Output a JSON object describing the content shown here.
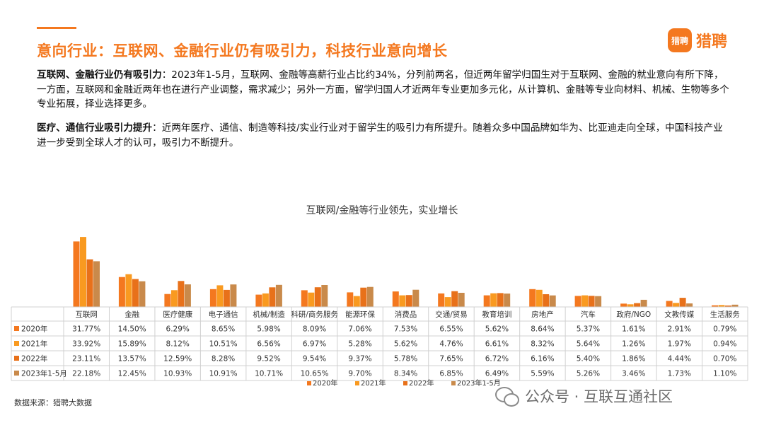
{
  "header": {
    "title": "意向行业：互联网、金融行业仍有吸引力，科技行业意向增长",
    "logo_badge": "猎聘",
    "logo_text": "猎聘"
  },
  "paragraphs": [
    {
      "lead": "互联网、金融行业仍有吸引力",
      "body": "：2023年1-5月，互联网、金融等高薪行业占比约34%，分列前两名，但近两年留学归国生对于互联网、金融的就业意向有所下降，一方面，互联网和金融近两年也在进行产业调整，需求减少；另外一方面，留学归国人才近两年专业更加多元化，从计算机、金融等专业向材料、机械、生物等多个专业拓展，择业选择更多。"
    },
    {
      "lead": "医疗、通信行业吸引力提升",
      "body": "：近两年医疗、通信、制造等科技/实业行业对于留学生的吸引力有所提升。随着众多中国品牌如华为、比亚迪走向全球，中国科技产业进一步受到全球人才的认可，吸引力不断提升。"
    }
  ],
  "chart_data": {
    "type": "bar",
    "title": "互联网/金融等行业领先，实业增长",
    "categories": [
      "互联网",
      "金融",
      "医疗健康",
      "电子通信",
      "机械/制造",
      "科研/商务服务",
      "能源环保",
      "消费品",
      "交通/贸易",
      "教育培训",
      "房地产",
      "汽车",
      "政府/NGO",
      "文教传媒",
      "生活服务"
    ],
    "series": [
      {
        "name": "2020年",
        "color": "#f4781f",
        "labels": [
          "31.77%",
          "14.50%",
          "6.29%",
          "8.65%",
          "5.98%",
          "8.09%",
          "7.06%",
          "7.53%",
          "6.55%",
          "5.62%",
          "8.64%",
          "5.37%",
          "1.61%",
          "2.91%",
          "0.79%"
        ],
        "values": [
          31.77,
          14.5,
          6.29,
          8.65,
          5.98,
          8.09,
          7.06,
          7.53,
          6.55,
          5.62,
          8.64,
          5.37,
          1.61,
          2.91,
          0.79
        ]
      },
      {
        "name": "2021年",
        "color": "#f99a20",
        "labels": [
          "33.92%",
          "15.89%",
          "8.12%",
          "10.51%",
          "6.56%",
          "6.97%",
          "5.28%",
          "5.62%",
          "4.76%",
          "6.61%",
          "8.32%",
          "5.64%",
          "1.26%",
          "1.97%",
          "0.94%"
        ],
        "values": [
          33.92,
          15.89,
          8.12,
          10.51,
          6.56,
          6.97,
          5.28,
          5.62,
          4.76,
          6.61,
          8.32,
          5.64,
          1.26,
          1.97,
          0.94
        ]
      },
      {
        "name": "2022年",
        "color": "#e8711a",
        "labels": [
          "23.11%",
          "13.57%",
          "12.59%",
          "8.28%",
          "9.52%",
          "9.54%",
          "9.37%",
          "5.78%",
          "7.65%",
          "6.72%",
          "6.16%",
          "5.40%",
          "1.86%",
          "4.44%",
          "0.70%"
        ],
        "values": [
          23.11,
          13.57,
          12.59,
          8.28,
          9.52,
          9.54,
          9.37,
          5.78,
          7.65,
          6.72,
          6.16,
          5.4,
          1.86,
          4.44,
          0.7
        ]
      },
      {
        "name": "2023年1-5月",
        "color": "#c98a4b",
        "labels": [
          "22.18%",
          "12.45%",
          "10.93%",
          "10.91%",
          "10.71%",
          "10.65%",
          "9.70%",
          "8.34%",
          "6.85%",
          "6.49%",
          "5.59%",
          "5.26%",
          "3.46%",
          "1.73%",
          "1.10%"
        ],
        "values": [
          22.18,
          12.45,
          10.93,
          10.91,
          10.71,
          10.65,
          9.7,
          8.34,
          6.85,
          6.49,
          5.59,
          5.26,
          3.46,
          1.73,
          1.1
        ]
      }
    ],
    "ylim": [
      0,
      35
    ],
    "legend": "bottom",
    "grid": false
  },
  "footer": {
    "source": "数据来源：猎聘大数据",
    "watermark": "公众号 · 互联互通社区"
  }
}
